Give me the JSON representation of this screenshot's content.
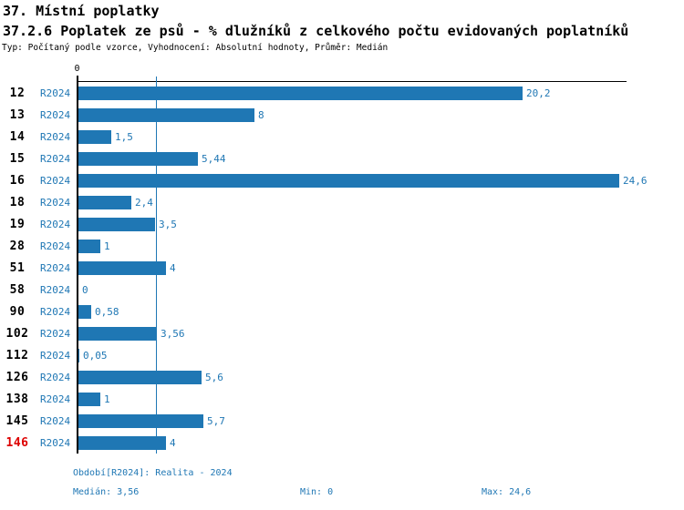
{
  "header": {
    "title": "37. Místní poplatky",
    "subtitle": "37.2.6 Poplatek ze psů - % dlužníků z celkového počtu evidovaných poplatníků",
    "meta": "Typ: Počítaný podle vzorce, Vyhodnocení: Absolutní hodnoty, Průměr: Medián"
  },
  "chart_data": {
    "type": "bar",
    "orientation": "horizontal",
    "series_name": "R2024",
    "categories": [
      "12",
      "13",
      "14",
      "15",
      "16",
      "18",
      "19",
      "28",
      "51",
      "58",
      "90",
      "102",
      "112",
      "126",
      "138",
      "145",
      "146"
    ],
    "values": [
      20.2,
      8,
      1.5,
      5.44,
      24.6,
      2.4,
      3.5,
      1,
      4,
      0,
      0.58,
      3.56,
      0.05,
      5.6,
      1,
      5.7,
      4
    ],
    "value_labels": [
      "20,2",
      "8",
      "1,5",
      "5,44",
      "24,6",
      "2,4",
      "3,5",
      "1",
      "4",
      "0",
      "0,58",
      "3,56",
      "0,05",
      "5,6",
      "1",
      "5,7",
      "4"
    ],
    "highlighted_category": "146",
    "axis": {
      "zero_label": "0",
      "xlim": [
        0,
        24.9
      ],
      "median_line_value": 3.56,
      "grid": "median-line-only"
    },
    "colors": {
      "bar": "#1f77b4",
      "text_blue": "#1f77b4",
      "highlight_label": "#dd0000",
      "axis": "#000000"
    },
    "legend_position": "none"
  },
  "footer": {
    "period": "Období[R2024]: Realita - 2024",
    "median": "Medián: 3,56",
    "min": "Min: 0",
    "max": "Max: 24,6"
  }
}
